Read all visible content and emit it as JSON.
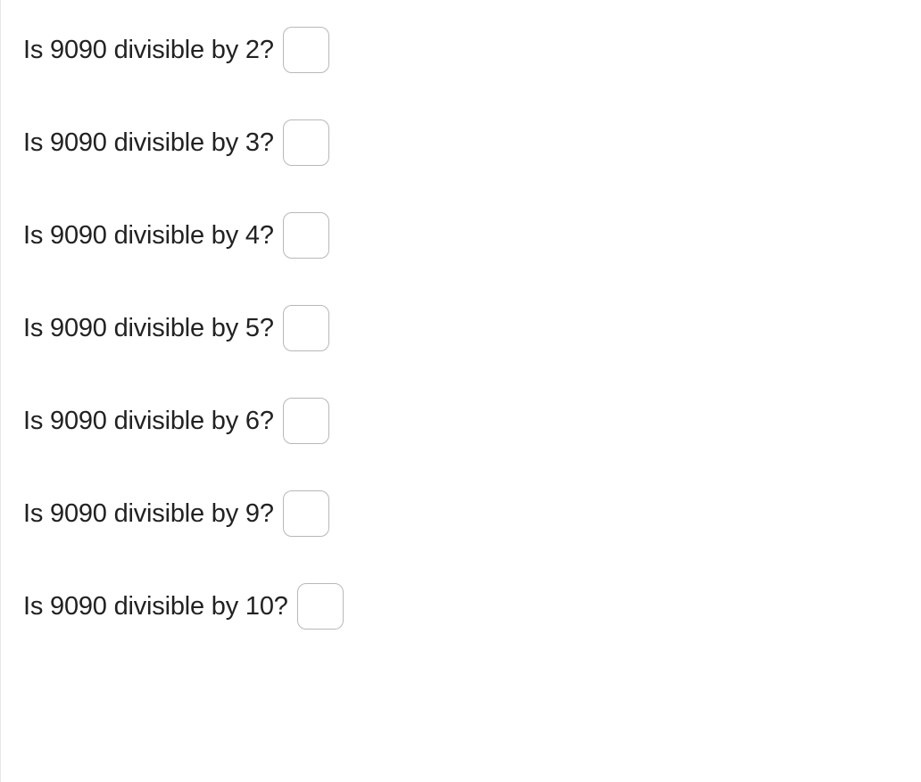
{
  "questions": [
    {
      "text": "Is 9090 divisible by 2?"
    },
    {
      "text": "Is 9090 divisible by 3?"
    },
    {
      "text": "Is 9090 divisible by 4?"
    },
    {
      "text": "Is 9090 divisible by 5?"
    },
    {
      "text": "Is 9090 divisible by 6?"
    },
    {
      "text": "Is 9090 divisible by 9?"
    },
    {
      "text": "Is 9090 divisible by 10?"
    }
  ],
  "style": {
    "text_color": "#222222",
    "border_color": "#b8b8b8",
    "background_color": "#ffffff",
    "font_size": 29,
    "box_size": 52,
    "box_radius": 10,
    "row_spacing": 52
  }
}
